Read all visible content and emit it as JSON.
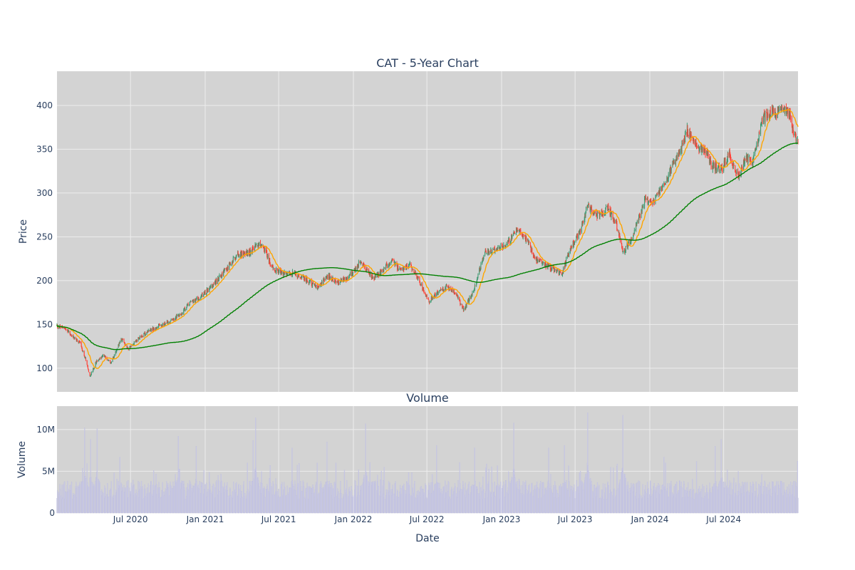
{
  "chart_data": [
    {
      "type": "candlestick",
      "title": "CAT - 5-Year Chart",
      "xlabel": "",
      "ylabel": "Price",
      "ylim": [
        73,
        439
      ],
      "yticks": [
        100,
        150,
        200,
        250,
        300,
        350,
        400
      ],
      "xlim": [
        "2020-01-02",
        "2024-12-31"
      ],
      "grid": true,
      "legend": "none",
      "colors": {
        "increasing": "#3D9970",
        "decreasing": "#FF4136",
        "ma_short": "#FFA500",
        "ma_long": "#008000",
        "panel_bg": "#D3D3D3",
        "grid": "#EDEDED",
        "text": "#2A3F5F"
      },
      "anchors": [
        [
          "2020-01-02",
          148
        ],
        [
          "2020-01-20",
          146
        ],
        [
          "2020-02-10",
          136
        ],
        [
          "2020-02-28",
          128
        ],
        [
          "2020-03-13",
          110
        ],
        [
          "2020-03-23",
          90
        ],
        [
          "2020-04-08",
          108
        ],
        [
          "2020-04-24",
          115
        ],
        [
          "2020-05-14",
          106
        ],
        [
          "2020-06-08",
          134
        ],
        [
          "2020-06-26",
          122
        ],
        [
          "2020-07-20",
          134
        ],
        [
          "2020-08-20",
          144
        ],
        [
          "2020-09-20",
          150
        ],
        [
          "2020-10-30",
          160
        ],
        [
          "2020-11-20",
          173
        ],
        [
          "2020-12-20",
          181
        ],
        [
          "2021-01-20",
          195
        ],
        [
          "2021-02-25",
          215
        ],
        [
          "2021-03-20",
          230
        ],
        [
          "2021-04-20",
          232
        ],
        [
          "2021-05-10",
          242
        ],
        [
          "2021-05-25",
          238
        ],
        [
          "2021-06-15",
          215
        ],
        [
          "2021-07-10",
          208
        ],
        [
          "2021-08-10",
          208
        ],
        [
          "2021-09-10",
          200
        ],
        [
          "2021-10-05",
          192
        ],
        [
          "2021-10-30",
          205
        ],
        [
          "2021-11-25",
          198
        ],
        [
          "2021-12-20",
          204
        ],
        [
          "2022-01-20",
          222
        ],
        [
          "2022-02-20",
          202
        ],
        [
          "2022-03-10",
          210
        ],
        [
          "2022-04-05",
          222
        ],
        [
          "2022-04-25",
          213
        ],
        [
          "2022-05-20",
          218
        ],
        [
          "2022-06-10",
          202
        ],
        [
          "2022-07-05",
          176
        ],
        [
          "2022-07-30",
          187
        ],
        [
          "2022-08-20",
          194
        ],
        [
          "2022-09-10",
          185
        ],
        [
          "2022-09-30",
          166
        ],
        [
          "2022-10-25",
          190
        ],
        [
          "2022-11-20",
          232
        ],
        [
          "2022-12-15",
          236
        ],
        [
          "2023-01-10",
          240
        ],
        [
          "2023-02-10",
          258
        ],
        [
          "2023-03-05",
          246
        ],
        [
          "2023-03-25",
          225
        ],
        [
          "2023-04-20",
          218
        ],
        [
          "2023-05-30",
          208
        ],
        [
          "2023-06-20",
          238
        ],
        [
          "2023-07-15",
          258
        ],
        [
          "2023-08-01",
          285
        ],
        [
          "2023-08-25",
          275
        ],
        [
          "2023-09-20",
          282
        ],
        [
          "2023-10-10",
          266
        ],
        [
          "2023-10-27",
          232
        ],
        [
          "2023-11-20",
          250
        ],
        [
          "2023-12-20",
          292
        ],
        [
          "2024-01-10",
          290
        ],
        [
          "2024-01-30",
          305
        ],
        [
          "2024-02-25",
          330
        ],
        [
          "2024-03-15",
          345
        ],
        [
          "2024-04-02",
          372
        ],
        [
          "2024-04-20",
          355
        ],
        [
          "2024-05-15",
          350
        ],
        [
          "2024-06-05",
          330
        ],
        [
          "2024-06-25",
          326
        ],
        [
          "2024-07-15",
          345
        ],
        [
          "2024-08-06",
          318
        ],
        [
          "2024-08-25",
          340
        ],
        [
          "2024-09-10",
          335
        ],
        [
          "2024-10-05",
          385
        ],
        [
          "2024-10-25",
          392
        ],
        [
          "2024-11-10",
          390
        ],
        [
          "2024-11-25",
          400
        ],
        [
          "2024-12-10",
          390
        ],
        [
          "2024-12-20",
          366
        ],
        [
          "2024-12-31",
          363
        ]
      ]
    },
    {
      "type": "bar",
      "title": "Volume",
      "xlabel": "Date",
      "ylabel": "Volume",
      "ylim": [
        0,
        12800000
      ],
      "yticks": [
        0,
        5000000,
        10000000
      ],
      "ytick_labels": [
        "0",
        "5M",
        "10M"
      ],
      "x_tick_labels": [
        [
          "2020-07-01",
          "Jul 2020"
        ],
        [
          "2021-01-01",
          "Jan 2021"
        ],
        [
          "2021-07-01",
          "Jul 2021"
        ],
        [
          "2022-01-01",
          "Jan 2022"
        ],
        [
          "2022-07-01",
          "Jul 2022"
        ],
        [
          "2023-01-01",
          "Jan 2023"
        ],
        [
          "2023-07-01",
          "Jul 2023"
        ],
        [
          "2024-01-01",
          "Jan 2024"
        ],
        [
          "2024-07-01",
          "Jul 2024"
        ]
      ],
      "grid": true,
      "colors": {
        "bar": "#CBCBE6",
        "bar_edge": "#B7B7D9"
      },
      "baseline": 3000000,
      "volume_spikes": [
        [
          "2020-03-10",
          10200000
        ],
        [
          "2020-03-25",
          8800000
        ],
        [
          "2020-04-10",
          10100000
        ],
        [
          "2020-06-05",
          6700000
        ],
        [
          "2020-10-27",
          9200000
        ],
        [
          "2020-12-10",
          8000000
        ],
        [
          "2021-04-29",
          8700000
        ],
        [
          "2021-05-05",
          11400000
        ],
        [
          "2021-08-03",
          7800000
        ],
        [
          "2021-10-28",
          8500000
        ],
        [
          "2022-01-31",
          10700000
        ],
        [
          "2022-02-20",
          8600000
        ],
        [
          "2022-07-25",
          8100000
        ],
        [
          "2022-10-27",
          7800000
        ],
        [
          "2023-01-31",
          10800000
        ],
        [
          "2023-04-27",
          7800000
        ],
        [
          "2023-06-05",
          8100000
        ],
        [
          "2023-08-01",
          12000000
        ],
        [
          "2023-10-27",
          11700000
        ],
        [
          "2024-02-05",
          6700000
        ],
        [
          "2024-06-10",
          8000000
        ],
        [
          "2024-06-25",
          8800000
        ],
        [
          "2024-08-06",
          5000000
        ]
      ]
    }
  ]
}
